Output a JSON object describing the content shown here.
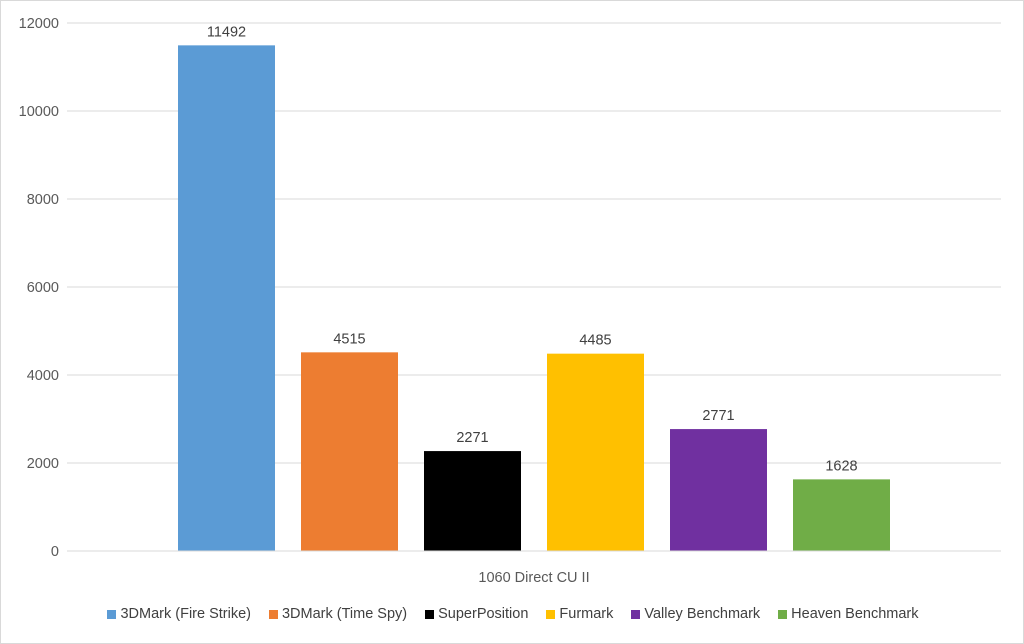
{
  "chart_data": {
    "type": "bar",
    "categories": [
      "1060 Direct CU II"
    ],
    "series": [
      {
        "name": "3DMark (Fire Strike)",
        "values": [
          11492
        ],
        "color": "#5b9bd5"
      },
      {
        "name": "3DMark (Time Spy)",
        "values": [
          4515
        ],
        "color": "#ed7d31"
      },
      {
        "name": "SuperPosition",
        "values": [
          2271
        ],
        "color": "#000000"
      },
      {
        "name": "Furmark",
        "values": [
          4485
        ],
        "color": "#ffc000"
      },
      {
        "name": "Valley Benchmark",
        "values": [
          2771
        ],
        "color": "#7030a0"
      },
      {
        "name": "Heaven Benchmark",
        "values": [
          1628
        ],
        "color": "#70ad47"
      }
    ],
    "y_ticks": [
      "0",
      "2000",
      "4000",
      "6000",
      "8000",
      "10000",
      "12000"
    ],
    "ylim": [
      0,
      12000
    ],
    "data_labels": [
      "11492",
      "4515",
      "2271",
      "4485",
      "2771",
      "1628"
    ],
    "grid": true,
    "legend_position": "bottom",
    "title": "",
    "xlabel": "",
    "ylabel": ""
  }
}
